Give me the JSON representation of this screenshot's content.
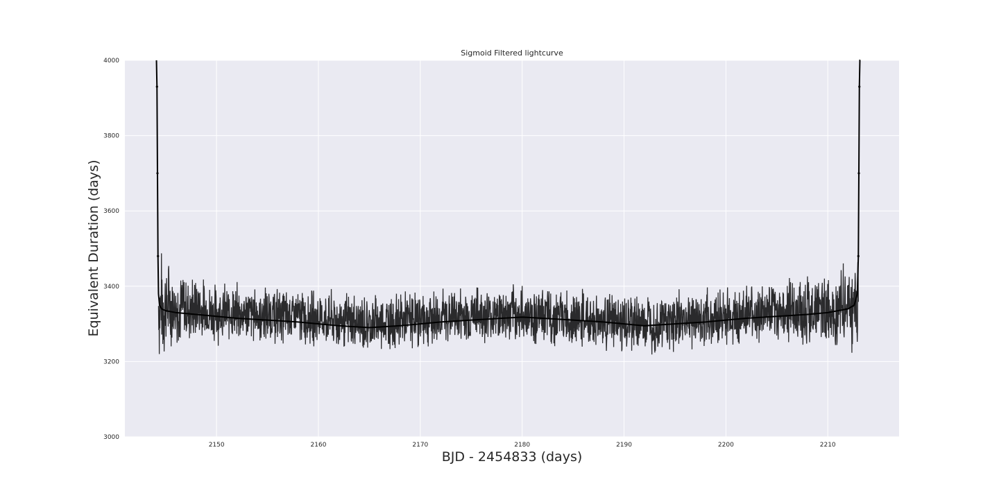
{
  "chart_data": {
    "type": "line",
    "title": "Sigmoid Filtered lightcurve",
    "xlabel": "BJD - 2454833 (days)",
    "ylabel": "Equivalent Duration (days)",
    "xlim": [
      2141,
      2217
    ],
    "ylim": [
      3000,
      4000
    ],
    "xticks": [
      2150,
      2160,
      2170,
      2180,
      2190,
      2200,
      2210
    ],
    "yticks": [
      3000,
      3200,
      3400,
      3600,
      3800,
      4000
    ],
    "grid": true,
    "legend": "none",
    "colors": {
      "background": "#eaeaf2",
      "grid": "#ffffff",
      "line": "#000000"
    },
    "series": [
      {
        "x": [
          2144.1,
          2144.15,
          2144.2,
          2144.25,
          2144.3,
          2144.4,
          2144.6,
          2145,
          2146,
          2148,
          2150,
          2152,
          2155,
          2158,
          2160,
          2162,
          2165,
          2168,
          2170,
          2172,
          2175,
          2178,
          2180,
          2182,
          2185,
          2188,
          2190,
          2192,
          2195,
          2198,
          2200,
          2202,
          2205,
          2208,
          2210,
          2211,
          2212,
          2212.6,
          2212.9,
          2213.0,
          2213.05,
          2213.1,
          2213.15,
          2213.2
        ],
        "y": [
          4000,
          3930,
          3700,
          3480,
          3380,
          3350,
          3340,
          3335,
          3330,
          3325,
          3320,
          3315,
          3310,
          3305,
          3300,
          3295,
          3290,
          3295,
          3300,
          3305,
          3310,
          3315,
          3318,
          3315,
          3310,
          3305,
          3300,
          3295,
          3300,
          3305,
          3310,
          3315,
          3320,
          3325,
          3330,
          3335,
          3340,
          3350,
          3380,
          3480,
          3700,
          3930,
          4000,
          4000
        ],
        "band": [
          [
            2144.3,
            3180,
            3520
          ],
          [
            2146,
            3230,
            3460
          ],
          [
            2150,
            3240,
            3420
          ],
          [
            2155,
            3240,
            3410
          ],
          [
            2160,
            3230,
            3400
          ],
          [
            2165,
            3210,
            3390
          ],
          [
            2170,
            3230,
            3400
          ],
          [
            2175,
            3240,
            3410
          ],
          [
            2180,
            3240,
            3410
          ],
          [
            2185,
            3230,
            3400
          ],
          [
            2190,
            3210,
            3390
          ],
          [
            2195,
            3220,
            3400
          ],
          [
            2200,
            3230,
            3410
          ],
          [
            2205,
            3240,
            3420
          ],
          [
            2210,
            3230,
            3450
          ],
          [
            2212,
            3210,
            3480
          ],
          [
            2213.0,
            3180,
            3540
          ]
        ]
      }
    ]
  }
}
